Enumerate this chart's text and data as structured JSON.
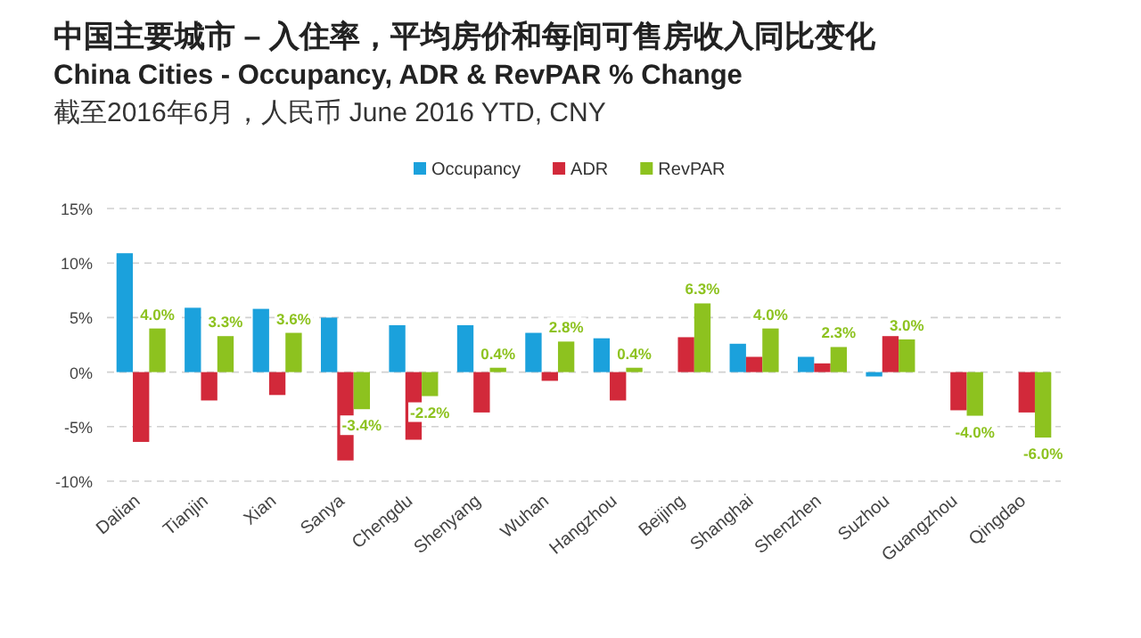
{
  "chart_data": {
    "type": "bar",
    "title": "中国主要城市 – 入住率，平均房价和每间可售房收入同比变化",
    "subtitle": "China Cities - Occupancy, ADR & RevPAR % Change",
    "annotations": [
      "截至2016年6月，人民币 June 2016 YTD, CNY"
    ],
    "categories": [
      "Dalian",
      "Tianjin",
      "Xian",
      "Sanya",
      "Chengdu",
      "Shenyang",
      "Wuhan",
      "Hangzhou",
      "Beijing",
      "Shanghai",
      "Shenzhen",
      "Suzhou",
      "Guangzhou",
      "Qingdao"
    ],
    "series": [
      {
        "name": "Occupancy",
        "color": "#1ba1dc",
        "values": [
          10.9,
          5.9,
          5.8,
          5.0,
          4.3,
          4.3,
          3.6,
          3.1,
          null,
          2.6,
          1.4,
          -0.4,
          null,
          null
        ]
      },
      {
        "name": "ADR",
        "color": "#d2293a",
        "values": [
          -6.4,
          -2.6,
          -2.1,
          -8.1,
          -6.2,
          -3.7,
          -0.8,
          -2.6,
          3.2,
          1.4,
          0.8,
          3.3,
          -3.5,
          -3.7
        ]
      },
      {
        "name": "RevPAR",
        "color": "#8dc21f",
        "values": [
          4.0,
          3.3,
          3.6,
          -3.4,
          -2.2,
          0.4,
          2.8,
          0.4,
          6.3,
          4.0,
          2.3,
          3.0,
          -4.0,
          -6.0
        ],
        "value_labels": [
          "4.0%",
          "3.3%",
          "3.6%",
          "-3.4%",
          "-2.2%",
          "0.4%",
          "2.8%",
          "0.4%",
          "6.3%",
          "4.0%",
          "2.3%",
          "3.0%",
          "-4.0%",
          "-6.0%"
        ]
      }
    ],
    "ylim": [
      -10,
      15
    ],
    "yticks": [
      {
        "value": -10,
        "label": "-10%"
      },
      {
        "value": -5,
        "label": "-5%"
      },
      {
        "value": 0,
        "label": "0%"
      },
      {
        "value": 5,
        "label": "5%"
      },
      {
        "value": 10,
        "label": "10%"
      },
      {
        "value": 15,
        "label": "15%"
      }
    ],
    "grid": "y",
    "legend": "top"
  }
}
